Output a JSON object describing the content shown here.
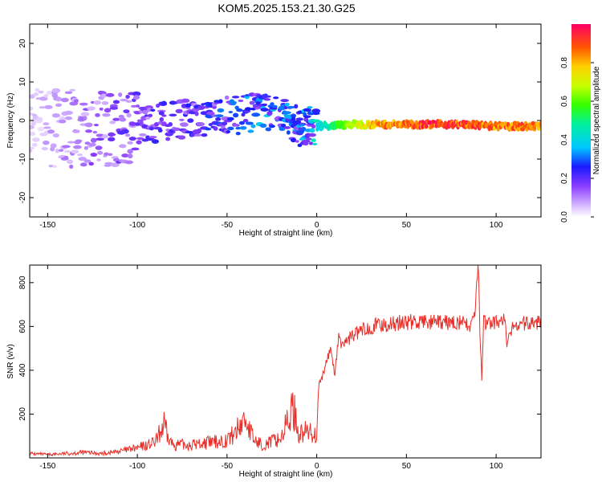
{
  "title": "KOM5.2025.153.21.30.G25",
  "chart_data": [
    {
      "type": "heatmap",
      "xlabel": "Height of straight line (km)",
      "ylabel": "Frequency (Hz)",
      "xlim": [
        -160,
        125
      ],
      "ylim": [
        -25,
        25
      ],
      "xticks": [
        -150,
        -100,
        -50,
        0,
        50,
        100
      ],
      "yticks": [
        -20,
        -10,
        0,
        10,
        20
      ],
      "colorbar": {
        "label": "Normalized spectral amplitude",
        "range": [
          0,
          1
        ],
        "ticks": [
          0.0,
          0.2,
          0.4,
          0.6,
          0.8
        ]
      },
      "ridge": [
        {
          "x": -160,
          "y": -2,
          "amp": 0.05
        },
        {
          "x": -120,
          "y": -2,
          "amp": 0.15
        },
        {
          "x": -100,
          "y": -1,
          "amp": 0.2
        },
        {
          "x": -80,
          "y": 0,
          "amp": 0.2
        },
        {
          "x": -60,
          "y": 1,
          "amp": 0.25
        },
        {
          "x": -40,
          "y": 1.5,
          "amp": 0.3
        },
        {
          "x": -25,
          "y": 2.5,
          "amp": 0.35
        },
        {
          "x": -20,
          "y": 2.5,
          "amp": 0.3
        },
        {
          "x": -10,
          "y": -1.5,
          "amp": 0.3
        },
        {
          "x": 0,
          "y": -1.5,
          "amp": 0.4
        },
        {
          "x": 20,
          "y": -1,
          "amp": 0.7
        },
        {
          "x": 40,
          "y": -1,
          "amp": 0.9
        },
        {
          "x": 60,
          "y": -1,
          "amp": 0.95
        },
        {
          "x": 80,
          "y": -1,
          "amp": 0.95
        },
        {
          "x": 100,
          "y": -1.5,
          "amp": 0.9
        },
        {
          "x": 125,
          "y": -1.5,
          "amp": 0.9
        }
      ]
    },
    {
      "type": "line",
      "xlabel": "Height of straight line (km)",
      "ylabel": "SNR (v/v)",
      "xlim": [
        -160,
        125
      ],
      "ylim": [
        0,
        880
      ],
      "xticks": [
        -150,
        -100,
        -50,
        0,
        50,
        100
      ],
      "yticks": [
        200,
        400,
        600,
        800
      ],
      "series": [
        {
          "color": "#e8302a",
          "x": [
            -160,
            -150,
            -140,
            -130,
            -120,
            -110,
            -100,
            -90,
            -85,
            -83,
            -80,
            -70,
            -60,
            -50,
            -45,
            -40,
            -35,
            -30,
            -20,
            -13,
            -10,
            -5,
            0,
            1,
            3,
            5,
            8,
            10,
            12,
            15,
            20,
            25,
            30,
            40,
            50,
            60,
            70,
            80,
            85,
            88,
            90,
            91,
            92,
            93,
            95,
            100,
            105,
            106,
            110,
            120,
            125
          ],
          "y": [
            20,
            15,
            20,
            25,
            20,
            30,
            45,
            70,
            150,
            90,
            60,
            60,
            70,
            80,
            120,
            180,
            80,
            60,
            90,
            230,
            110,
            120,
            110,
            320,
            360,
            430,
            500,
            380,
            540,
            520,
            560,
            580,
            600,
            610,
            620,
            620,
            615,
            620,
            600,
            650,
            880,
            570,
            370,
            620,
            610,
            620,
            630,
            510,
            610,
            615,
            620
          ]
        }
      ]
    }
  ]
}
